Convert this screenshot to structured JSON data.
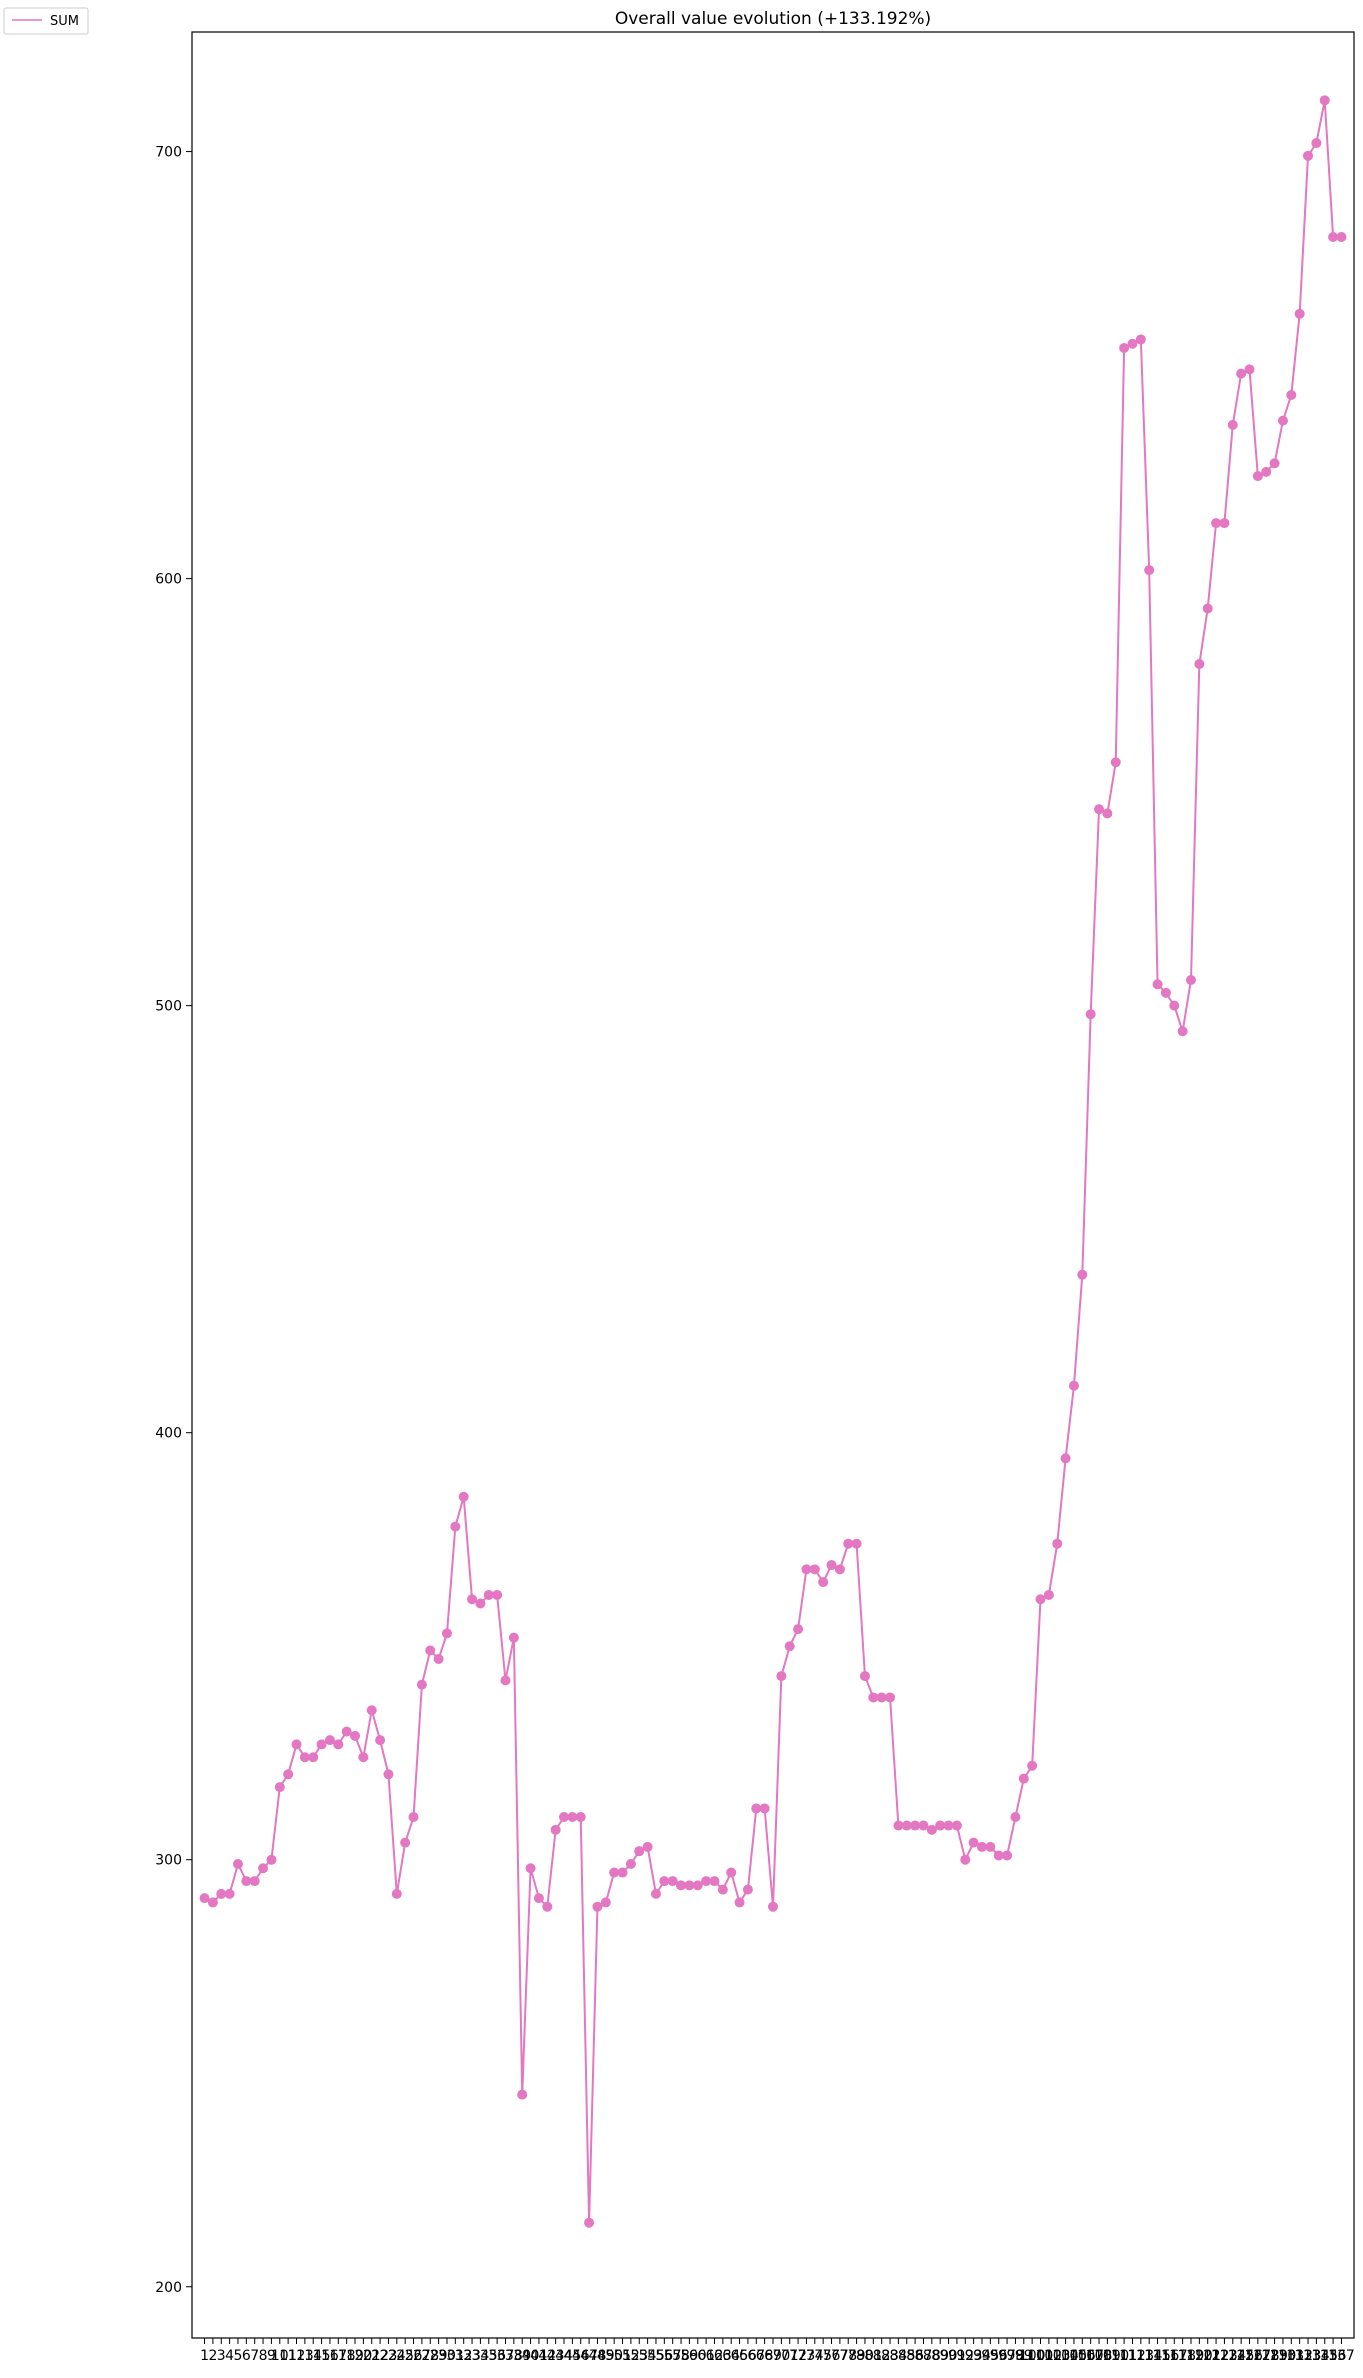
{
  "chart_data": {
    "type": "line",
    "title": "Overall value evolution (+133.192%)",
    "xlabel": "",
    "ylabel": "",
    "ylim": [
      188,
      728
    ],
    "xlim": [
      -1.5,
      137.5
    ],
    "yticks": [
      200,
      300,
      400,
      500,
      600,
      700
    ],
    "x_tick_labels": [
      "1",
      "2",
      "3",
      "4",
      "5",
      "6",
      "7",
      "8",
      "9",
      "10",
      "11",
      "12",
      "13",
      "14",
      "15",
      "16",
      "17",
      "18",
      "19",
      "20",
      "21",
      "22",
      "23",
      "24",
      "25",
      "26",
      "27",
      "28",
      "29",
      "30",
      "31",
      "32",
      "33",
      "34",
      "35",
      "36",
      "37",
      "38",
      "39",
      "40",
      "41",
      "42",
      "43",
      "44",
      "45",
      "46",
      "47",
      "48",
      "49",
      "50",
      "51",
      "52",
      "53",
      "54",
      "55",
      "56",
      "57",
      "58",
      "59",
      "60",
      "61",
      "62",
      "63",
      "64",
      "65",
      "66",
      "67",
      "68",
      "69",
      "70",
      "71",
      "72",
      "73",
      "74",
      "75",
      "76",
      "77",
      "78",
      "79",
      "80",
      "81",
      "82",
      "83",
      "84",
      "85",
      "86",
      "87",
      "88",
      "89",
      "90",
      "91",
      "92",
      "93",
      "94",
      "95",
      "96",
      "97",
      "98",
      "99",
      "100",
      "101",
      "102",
      "103",
      "104",
      "105",
      "106",
      "107",
      "108",
      "109",
      "110",
      "111",
      "112",
      "113",
      "114",
      "115",
      "116",
      "117",
      "118",
      "119",
      "120",
      "121",
      "122",
      "123",
      "124",
      "125",
      "126",
      "127",
      "128",
      "129",
      "130",
      "131",
      "132",
      "133",
      "134",
      "135",
      "136",
      "137"
    ],
    "grid": false,
    "legend_position": "top-left-outside",
    "series_color": "#e377c2",
    "series": [
      {
        "name": "SUM",
        "values": [
          291,
          290,
          292,
          292,
          299,
          295,
          295,
          298,
          300,
          317,
          320,
          327,
          324,
          324,
          327,
          328,
          327,
          330,
          329,
          324,
          335,
          328,
          320,
          292,
          304,
          310,
          341,
          349,
          347,
          353,
          378,
          385,
          361,
          360,
          362,
          362,
          342,
          352,
          245,
          298,
          291,
          289,
          307,
          310,
          310,
          310,
          215,
          289,
          290,
          297,
          297,
          299,
          302,
          303,
          292,
          295,
          295,
          294,
          294,
          294,
          295,
          295,
          293,
          297,
          290,
          293,
          312,
          312,
          289,
          343,
          350,
          354,
          368,
          368,
          365,
          369,
          368,
          374,
          374,
          343,
          338,
          338,
          338,
          308,
          308,
          308,
          308,
          307,
          308,
          308,
          308,
          300,
          304,
          303,
          303,
          301,
          301,
          310,
          319,
          322,
          361,
          362,
          374,
          394,
          411,
          437,
          498,
          546,
          545,
          557,
          654,
          655,
          656,
          602,
          505,
          503,
          500,
          494,
          506,
          580,
          593,
          613,
          613,
          636,
          648,
          649,
          624,
          625,
          627,
          637,
          643,
          662,
          699,
          702,
          712,
          680,
          680
        ]
      }
    ]
  }
}
